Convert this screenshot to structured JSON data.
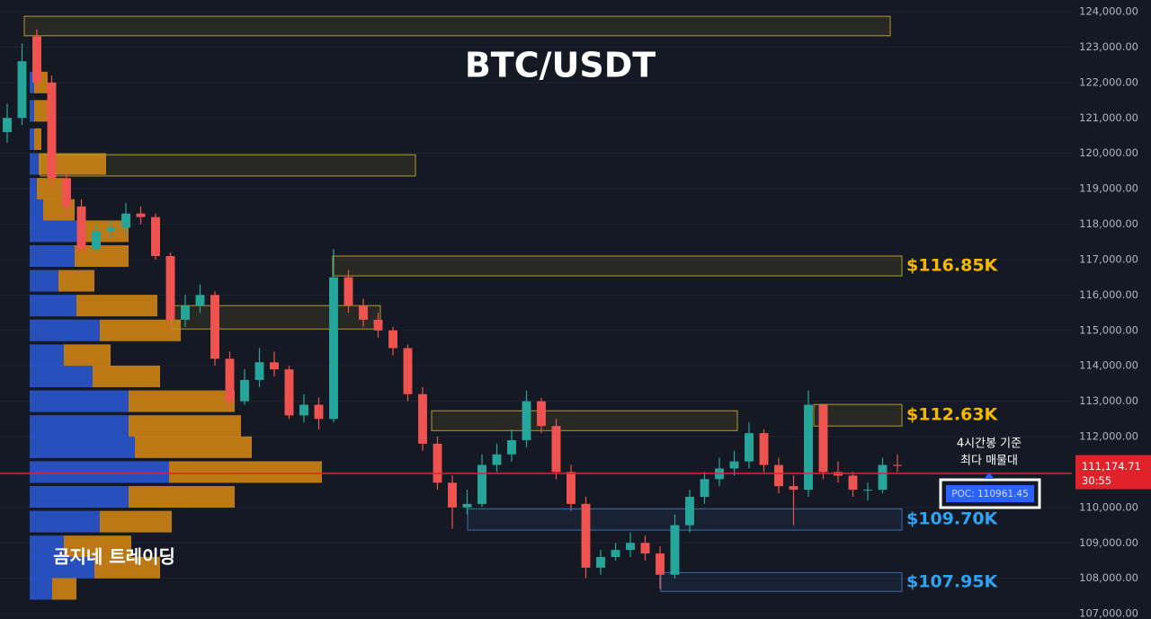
{
  "chart_data": {
    "type": "candlestick",
    "title": "BTC/USDT",
    "watermark": "곰지네 트레이딩",
    "up_color": "#26a69a",
    "down_color": "#ef5350",
    "open": [
      120600,
      121000,
      123300,
      122000,
      119300,
      118500,
      117300,
      117800,
      117900,
      118300,
      118200,
      117100,
      115300,
      115700,
      116000,
      114200,
      113000,
      113600,
      114100,
      113900,
      112600,
      112900,
      112500,
      116500,
      115700,
      115300,
      115000,
      114500,
      113200,
      111800,
      110700,
      110000,
      110100,
      111200,
      111500,
      111900,
      113000,
      112300,
      111000,
      110100,
      108300,
      108600,
      108800,
      109000,
      108700,
      108100,
      109500,
      110300,
      110800,
      111100,
      111300,
      112100,
      111200,
      110600,
      110500,
      112900,
      111000,
      110900,
      110500,
      110500,
      111200
    ],
    "high": [
      121400,
      123100,
      123500,
      122200,
      119500,
      118700,
      118000,
      118100,
      118600,
      118500,
      118300,
      117200,
      116000,
      116300,
      116100,
      114400,
      113900,
      114500,
      114400,
      114000,
      113200,
      113100,
      117300,
      116700,
      115900,
      115500,
      115100,
      114600,
      113400,
      112000,
      110900,
      110500,
      111500,
      111800,
      112200,
      113300,
      113100,
      112500,
      111200,
      110300,
      108800,
      109000,
      109300,
      109200,
      108900,
      109800,
      110500,
      111000,
      111400,
      111600,
      112400,
      112200,
      111400,
      110900,
      113300,
      112900,
      111300,
      111000,
      110700,
      111400,
      111500
    ],
    "low": [
      120300,
      120800,
      121800,
      119000,
      118200,
      117100,
      117200,
      117600,
      117700,
      118000,
      117000,
      115000,
      115100,
      115500,
      114000,
      112800,
      112900,
      113400,
      113700,
      112500,
      112400,
      112200,
      112400,
      115500,
      115100,
      114800,
      114300,
      113000,
      111600,
      110500,
      109400,
      109800,
      110000,
      111000,
      111300,
      111700,
      112100,
      110800,
      109900,
      108000,
      108100,
      108500,
      108600,
      108500,
      107700,
      108000,
      109300,
      110100,
      110600,
      110900,
      111100,
      111000,
      110400,
      109500,
      110300,
      110800,
      110700,
      110300,
      110200,
      110400,
      111000
    ],
    "close": [
      121000,
      122600,
      122000,
      119300,
      118500,
      117300,
      117800,
      117900,
      118300,
      118200,
      117100,
      115300,
      115700,
      116000,
      114200,
      113000,
      113600,
      114100,
      113900,
      112600,
      112900,
      112500,
      116500,
      115700,
      115300,
      115000,
      114500,
      113200,
      111800,
      110700,
      110000,
      110100,
      111200,
      111500,
      111900,
      113000,
      112300,
      111000,
      110100,
      108300,
      108600,
      108800,
      109000,
      108700,
      108100,
      109500,
      110300,
      110800,
      111100,
      111300,
      112100,
      111200,
      110600,
      110500,
      112900,
      111000,
      110900,
      110500,
      110500,
      111200,
      111175
    ],
    "ylim": [
      106850,
      124330
    ],
    "yticks": [
      {
        "value": 107000,
        "label": "107,000.00"
      },
      {
        "value": 108000,
        "label": "108,000.00"
      },
      {
        "value": 109000,
        "label": "109,000.00"
      },
      {
        "value": 110000,
        "label": "110,000.00"
      },
      {
        "value": 111000,
        "label": "111,000.00"
      },
      {
        "value": 112000,
        "label": "112,000.00"
      },
      {
        "value": 113000,
        "label": "113,000.00"
      },
      {
        "value": 114000,
        "label": "114,000.00"
      },
      {
        "value": 115000,
        "label": "115,000.00"
      },
      {
        "value": 116000,
        "label": "116,000.00"
      },
      {
        "value": 117000,
        "label": "117,000.00"
      },
      {
        "value": 118000,
        "label": "118,000.00"
      },
      {
        "value": 119000,
        "label": "119,000.00"
      },
      {
        "value": 120000,
        "label": "120,000.00"
      },
      {
        "value": 121000,
        "label": "121,000.00"
      },
      {
        "value": 122000,
        "label": "122,000.00"
      },
      {
        "value": 123000,
        "label": "123,000.00"
      },
      {
        "value": 124000,
        "label": "124,000.00"
      }
    ],
    "grid": true,
    "profile_colors": {
      "buy": "#2b5bd7",
      "sell": "#d98a12"
    },
    "profile": [
      {
        "price": 122000,
        "buy": 5,
        "sell": 15
      },
      {
        "price": 121200,
        "buy": 5,
        "sell": 20
      },
      {
        "price": 120400,
        "buy": 5,
        "sell": 8
      },
      {
        "price": 119700,
        "buy": 10,
        "sell": 75
      },
      {
        "price": 119000,
        "buy": 8,
        "sell": 30
      },
      {
        "price": 118400,
        "buy": 15,
        "sell": 35
      },
      {
        "price": 117800,
        "buy": 55,
        "sell": 55
      },
      {
        "price": 117100,
        "buy": 50,
        "sell": 60
      },
      {
        "price": 116400,
        "buy": 32,
        "sell": 40
      },
      {
        "price": 115700,
        "buy": 52,
        "sell": 90
      },
      {
        "price": 115000,
        "buy": 78,
        "sell": 90
      },
      {
        "price": 114300,
        "buy": 38,
        "sell": 52
      },
      {
        "price": 113700,
        "buy": 70,
        "sell": 75
      },
      {
        "price": 113000,
        "buy": 110,
        "sell": 118
      },
      {
        "price": 112300,
        "buy": 110,
        "sell": 125
      },
      {
        "price": 111700,
        "buy": 117,
        "sell": 130
      },
      {
        "price": 111000,
        "buy": 155,
        "sell": 170
      },
      {
        "price": 110300,
        "buy": 110,
        "sell": 118
      },
      {
        "price": 109600,
        "buy": 78,
        "sell": 80
      },
      {
        "price": 108900,
        "buy": 38,
        "sell": 75
      },
      {
        "price": 108300,
        "buy": 72,
        "sell": 73
      },
      {
        "price": 107700,
        "buy": 25,
        "sell": 27
      }
    ],
    "zones": [
      {
        "top": 123870,
        "bottom": 123320,
        "color": "#b59a2a"
      },
      {
        "top": 119960,
        "bottom": 119360,
        "color": "#b59a2a"
      },
      {
        "top": 117100,
        "bottom": 116540,
        "color": "#b59a2a",
        "label": "$116.85K",
        "label_color": "#f5b800"
      },
      {
        "top": 115700,
        "bottom": 115040,
        "color": "#b59a2a"
      },
      {
        "top": 112730,
        "bottom": 112170,
        "color": "#b59a2a"
      },
      {
        "top": 112910,
        "bottom": 112300,
        "color": "#b59a2a",
        "label": "$112.63K",
        "label_color": "#f5b800"
      },
      {
        "top": 109960,
        "bottom": 109360,
        "color": "#3a6fa8",
        "label": "$109.70K",
        "label_color": "#2ea3f2"
      },
      {
        "top": 108160,
        "bottom": 107630,
        "color": "#3a6fa8",
        "label": "$107.95K",
        "label_color": "#2ea3f2"
      }
    ],
    "last_price": {
      "value": 111174.71,
      "label": "111,174.71"
    },
    "countdown": "30:55",
    "poc": {
      "value": 110961.45,
      "label": "POC: 110961.45"
    },
    "annotation": [
      "4시간봉 기준",
      "최다 매물대"
    ]
  }
}
